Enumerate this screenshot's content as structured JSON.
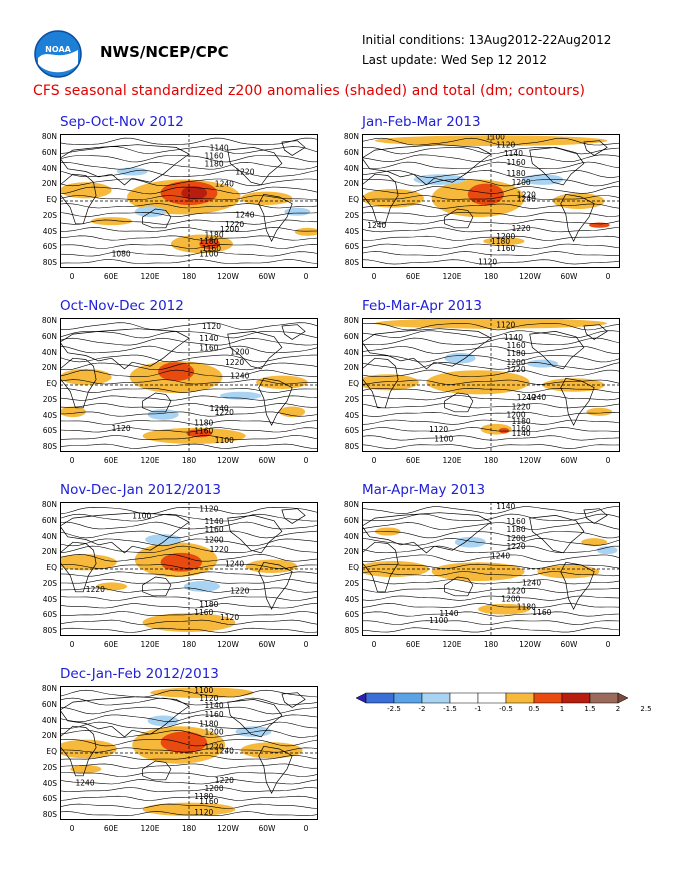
{
  "header": {
    "org": "NWS/NCEP/CPC",
    "init": "Initial conditions: 13Aug2012-22Aug2012",
    "update": "Last update: Wed Sep 12 2012",
    "title": "CFS seasonal standardized z200 anomalies (shaded) and total (dm; contours)",
    "logo_text": "NOAA"
  },
  "colors": {
    "title": "#e00000",
    "panel_title": "#2020d8",
    "plus_light": "#f6b93b",
    "plus_strong": "#e84a10",
    "plus_max": "#b81e10",
    "minus_light": "#a9d3f2",
    "minus_mid": "#5aa3e6"
  },
  "axes": {
    "lat_labels": [
      "80N",
      "60N",
      "40N",
      "20N",
      "EQ",
      "20S",
      "40S",
      "60S",
      "80S"
    ],
    "lon_labels": [
      "0",
      "60E",
      "120E",
      "180",
      "120W",
      "60W",
      "0"
    ]
  },
  "panels": [
    {
      "title": "Sep-Oct-Nov 2012",
      "contour_labels": [
        "1140",
        "1160",
        "1180",
        "1220",
        "1240",
        "1240",
        "1220",
        "1200",
        "1180",
        "1180",
        "1160",
        "1100",
        "1080"
      ]
    },
    {
      "title": "Oct-Nov-Dec 2012",
      "contour_labels": [
        "1120",
        "1140",
        "1160",
        "1200",
        "1220",
        "1240",
        "1240",
        "1220",
        "1180",
        "1160",
        "1120",
        "1100"
      ]
    },
    {
      "title": "Nov-Dec-Jan 2012/2013",
      "contour_labels": [
        "1100",
        "1120",
        "1140",
        "1160",
        "1200",
        "1220",
        "1240",
        "1220",
        "1220",
        "1180",
        "1160",
        "1120"
      ]
    },
    {
      "title": "Dec-Jan-Feb 2012/2013",
      "contour_labels": [
        "1100",
        "1120",
        "1140",
        "1160",
        "1180",
        "1200",
        "1220",
        "1240",
        "1240",
        "1220",
        "1200",
        "1180",
        "1160",
        "1120"
      ]
    },
    {
      "title": "Jan-Feb-Mar 2013",
      "contour_labels": [
        "1100",
        "1120",
        "1140",
        "1160",
        "1180",
        "1200",
        "1220",
        "1240",
        "1240",
        "1220",
        "1200",
        "1180",
        "1160",
        "1120"
      ]
    },
    {
      "title": "Feb-Mar-Apr 2013",
      "contour_labels": [
        "1120",
        "1140",
        "1160",
        "1180",
        "1200",
        "1220",
        "1240",
        "1240",
        "1220",
        "1200",
        "1180",
        "1160",
        "1140",
        "1120",
        "1100"
      ]
    },
    {
      "title": "Mar-Apr-May 2013",
      "contour_labels": [
        "1140",
        "1160",
        "1180",
        "1200",
        "1220",
        "1240",
        "1240",
        "1220",
        "1200",
        "1180",
        "1160",
        "1140",
        "1100"
      ]
    }
  ],
  "colorbar": {
    "labels": [
      "-2.5",
      "-2",
      "-1.5",
      "-1",
      "-0.5",
      "0.5",
      "1",
      "1.5",
      "2",
      "2.5"
    ],
    "colors": [
      "#2d1fb0",
      "#3a6fd8",
      "#5aa3e6",
      "#a9d3f2",
      "#ffffff",
      "#ffffff",
      "#f6b93b",
      "#e84a10",
      "#b81e10",
      "#9c6a5a",
      "#7a4a3a"
    ]
  }
}
